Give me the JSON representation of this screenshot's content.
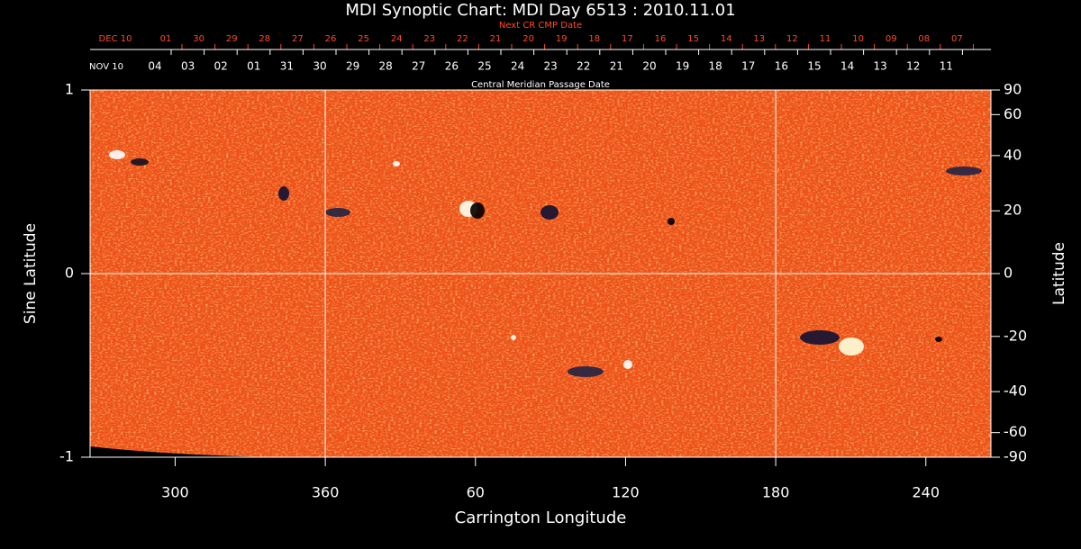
{
  "chart_data": {
    "type": "synoptic-map",
    "title": "MDI Synoptic Chart: MDI Day 6513 : 2010.11.01",
    "top_axis_red": {
      "label": "Next CR CMP Date",
      "start": "DEC 10",
      "categories": [
        "01",
        "30",
        "29",
        "28",
        "27",
        "26",
        "25",
        "24",
        "23",
        "22",
        "21",
        "20",
        "19",
        "18",
        "17",
        "16",
        "15",
        "14",
        "13",
        "12",
        "11",
        "10",
        "09",
        "08",
        "07"
      ],
      "color": "#ff4a26"
    },
    "top_axis_white": {
      "label": "Central Meridian Passage Date",
      "start": "NOV 10",
      "categories": [
        "04",
        "03",
        "02",
        "01",
        "31",
        "30",
        "29",
        "28",
        "27",
        "26",
        "25",
        "24",
        "23",
        "22",
        "21",
        "20",
        "19",
        "18",
        "17",
        "16",
        "15",
        "14",
        "13",
        "12",
        "11"
      ],
      "color": "#ffffff"
    },
    "xlabel": "Carrington Longitude",
    "ylabel": "Sine Latitude",
    "y2label": "Latitude",
    "xlim": [
      266,
      626
    ],
    "xticks": [
      300,
      360,
      {
        "value": 420,
        "label": "60"
      },
      {
        "value": 480,
        "label": "120"
      },
      {
        "value": 540,
        "label": "180"
      },
      {
        "value": 600,
        "label": "240"
      }
    ],
    "ylim": [
      -1,
      1
    ],
    "yticks": [
      -1,
      0,
      1
    ],
    "y2ticks": [
      90,
      60,
      40,
      20,
      0,
      -20,
      -40,
      -60,
      -90
    ],
    "grid": {
      "x": [
        360,
        540
      ],
      "y": [
        0
      ]
    },
    "map_color": "#f0501a"
  }
}
